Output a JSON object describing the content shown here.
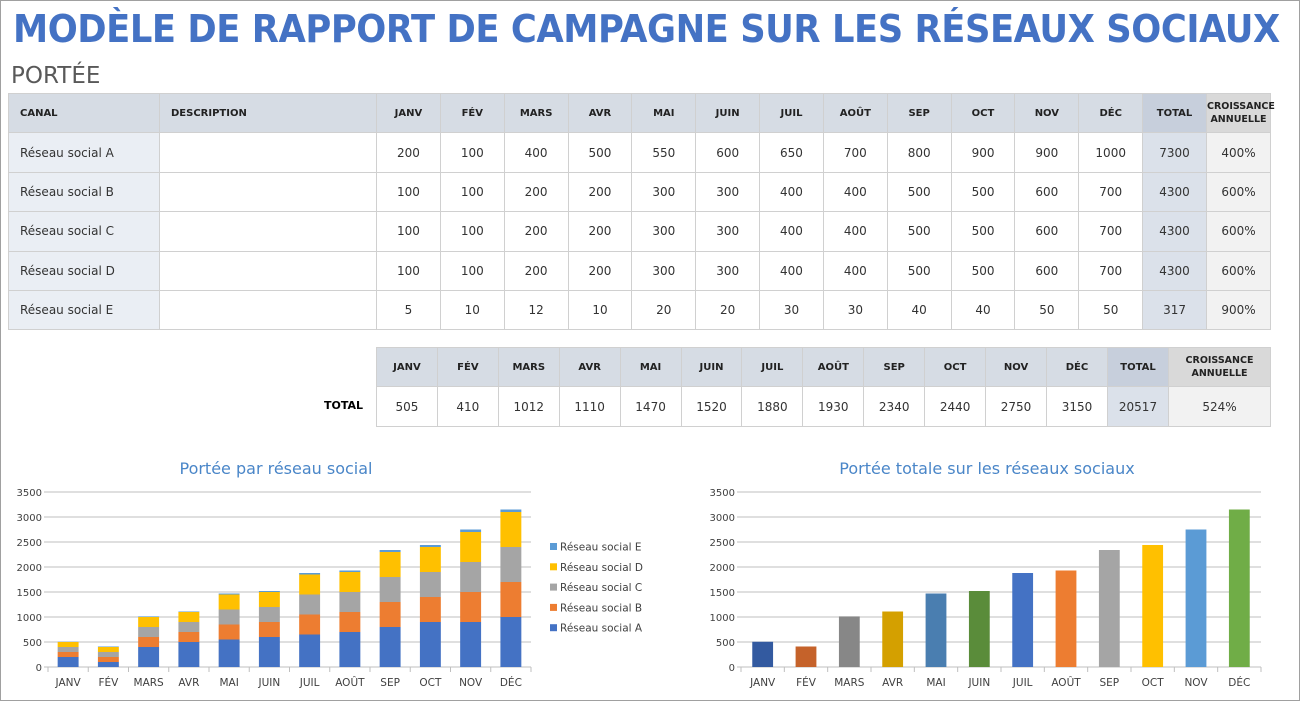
{
  "title": "MODÈLE DE RAPPORT DE CAMPAGNE SUR LES RÉSEAUX SOCIAUX",
  "section": "PORTÉE",
  "headers": {
    "channel": "CANAL",
    "description": "DESCRIPTION",
    "months": [
      "JANV",
      "FÉV",
      "MARS",
      "AVR",
      "MAI",
      "JUIN",
      "JUIL",
      "AOÛT",
      "SEP",
      "OCT",
      "NOV",
      "DÉC"
    ],
    "total": "TOTAL",
    "growth": "CROISSANCE ANNUELLE"
  },
  "rows": [
    {
      "channel": "Réseau social A",
      "description": "",
      "values": [
        200,
        100,
        400,
        500,
        550,
        600,
        650,
        700,
        800,
        900,
        900,
        1000
      ],
      "total": "7300",
      "growth": "400%"
    },
    {
      "channel": "Réseau social B",
      "description": "",
      "values": [
        100,
        100,
        200,
        200,
        300,
        300,
        400,
        400,
        500,
        500,
        600,
        700
      ],
      "total": "4300",
      "growth": "600%"
    },
    {
      "channel": "Réseau social C",
      "description": "",
      "values": [
        100,
        100,
        200,
        200,
        300,
        300,
        400,
        400,
        500,
        500,
        600,
        700
      ],
      "total": "4300",
      "growth": "600%"
    },
    {
      "channel": "Réseau social D",
      "description": "",
      "values": [
        100,
        100,
        200,
        200,
        300,
        300,
        400,
        400,
        500,
        500,
        600,
        700
      ],
      "total": "4300",
      "growth": "600%"
    },
    {
      "channel": "Réseau social E",
      "description": "",
      "values": [
        5,
        10,
        12,
        10,
        20,
        20,
        30,
        30,
        40,
        40,
        50,
        50
      ],
      "total": "317",
      "growth": "900%"
    }
  ],
  "totals": {
    "label": "TOTAL",
    "values": [
      505,
      410,
      1012,
      1110,
      1470,
      1520,
      1880,
      1930,
      2340,
      2440,
      2750,
      3150
    ],
    "total": "20517",
    "growth": "524%"
  },
  "chart_data": [
    {
      "type": "bar",
      "stacked": true,
      "title": "Portée par réseau social",
      "categories": [
        "JANV",
        "FÉV",
        "MARS",
        "AVR",
        "MAI",
        "JUIN",
        "JUIL",
        "AOÛT",
        "SEP",
        "OCT",
        "NOV",
        "DÉC"
      ],
      "ylim": [
        0,
        3500
      ],
      "yticks": [
        0,
        500,
        1000,
        1500,
        2000,
        2500,
        3000,
        3500
      ],
      "grid": true,
      "legend": "right",
      "series": [
        {
          "name": "Réseau social A",
          "color": "#4472C4",
          "values": [
            200,
            100,
            400,
            500,
            550,
            600,
            650,
            700,
            800,
            900,
            900,
            1000
          ]
        },
        {
          "name": "Réseau social B",
          "color": "#ED7D31",
          "values": [
            100,
            100,
            200,
            200,
            300,
            300,
            400,
            400,
            500,
            500,
            600,
            700
          ]
        },
        {
          "name": "Réseau social C",
          "color": "#A5A5A5",
          "values": [
            100,
            100,
            200,
            200,
            300,
            300,
            400,
            400,
            500,
            500,
            600,
            700
          ]
        },
        {
          "name": "Réseau social D",
          "color": "#FFC000",
          "values": [
            100,
            100,
            200,
            200,
            300,
            300,
            400,
            400,
            500,
            500,
            600,
            700
          ]
        },
        {
          "name": "Réseau social E",
          "color": "#5B9BD5",
          "values": [
            5,
            10,
            12,
            10,
            20,
            20,
            30,
            30,
            40,
            40,
            50,
            50
          ]
        }
      ]
    },
    {
      "type": "bar",
      "title": "Portée totale sur les réseaux sociaux",
      "categories": [
        "JANV",
        "FÉV",
        "MARS",
        "AVR",
        "MAI",
        "JUIN",
        "JUIL",
        "AOÛT",
        "SEP",
        "OCT",
        "NOV",
        "DÉC"
      ],
      "values": [
        505,
        410,
        1012,
        1110,
        1470,
        1520,
        1880,
        1930,
        2340,
        2440,
        2750,
        3150
      ],
      "ylim": [
        0,
        3500
      ],
      "yticks": [
        0,
        500,
        1000,
        1500,
        2000,
        2500,
        3000,
        3500
      ],
      "grid": true,
      "colors": [
        "#335AA0",
        "#C5622A",
        "#878787",
        "#D4A000",
        "#4A7EB0",
        "#5A8C3A",
        "#4472C4",
        "#ED7D31",
        "#A5A5A5",
        "#FFC000",
        "#5B9BD5",
        "#70AD47"
      ]
    }
  ],
  "colors": {
    "title": "#4472C4",
    "header": "#D6DCE4",
    "chart_title": "#4A86C8"
  }
}
